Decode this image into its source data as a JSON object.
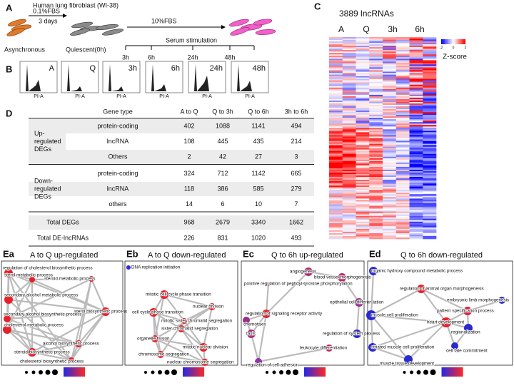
{
  "panel_a": {
    "label": "A",
    "title": "Human lung fibroblast (WI-38)",
    "step1": "0.1%FBS",
    "step1_duration": "3 days",
    "step2": "10%FBS",
    "stimulation": "Serum stimulation",
    "states": [
      "Asynchronous",
      "Quiescent(0h)"
    ],
    "timepoints": [
      "3h",
      "6h",
      "24h",
      "48h"
    ]
  },
  "panel_b": {
    "label": "B",
    "plots": [
      "A",
      "Q",
      "3h",
      "6h",
      "24h",
      "48h"
    ],
    "x_label": "PI-A"
  },
  "panel_c": {
    "label": "C",
    "title": "3889 lncRNAs",
    "columns": [
      "A",
      "Q",
      "3h",
      "6h"
    ],
    "colorbar_ticks": [
      -2,
      0,
      2
    ],
    "colorbar_label": "Z-score"
  },
  "panel_d": {
    "label": "D",
    "table": {
      "header": [
        "Gene type",
        "A to Q",
        "Q to 3h",
        "Q to 6h",
        "3h to 6h"
      ],
      "groups": [
        {
          "name_lines": [
            "Up-",
            "regulated",
            "DEGs"
          ],
          "rows": [
            [
              "protein-coding",
              402,
              1088,
              1141,
              494
            ],
            [
              "lncRNA",
              108,
              445,
              435,
              214
            ],
            [
              "Others",
              2,
              42,
              27,
              3
            ]
          ]
        },
        {
          "name_lines": [
            "Down-",
            "regulated",
            "DEGs"
          ],
          "rows": [
            [
              "protein-coding",
              324,
              712,
              1142,
              665
            ],
            [
              "lncRNA",
              118,
              386,
              585,
              279
            ],
            [
              "others",
              14,
              6,
              10,
              7
            ]
          ]
        }
      ],
      "totals": [
        [
          "Total DEGs",
          968,
          2679,
          3340,
          1662
        ],
        [
          "Total DE-lncRNAs",
          226,
          831,
          1020,
          493
        ]
      ]
    }
  },
  "panel_e": [
    {
      "label": "Ea",
      "title": "A to Q up-regulated",
      "nodes": [
        {
          "label": "regulation of cholesterol biosynthetic process",
          "color": "#e8202a"
        },
        {
          "label": "sterol metabolic process",
          "color": "#e8202a"
        },
        {
          "label": "steroid metabolic process",
          "color": "#e02030"
        },
        {
          "label": "secondary alcohol metabolic process",
          "color": "#e8202a"
        },
        {
          "label": "sterol biosynthetic process",
          "color": "#e8202a"
        },
        {
          "label": "secondary alcohol biosynthetic process",
          "color": "#e8202a"
        },
        {
          "label": "cholesterol metabolic process",
          "color": "#e8202a"
        },
        {
          "label": "alcohol biosynthetic process",
          "color": "#e02030"
        },
        {
          "label": "steroid biosynthetic process",
          "color": "#e8202a"
        },
        {
          "label": "cholesterol biosynthetic process",
          "color": "#e8202a"
        }
      ]
    },
    {
      "label": "Eb",
      "title": "A to Q down-regulated",
      "nodes": [
        {
          "label": "DNA replication initiation",
          "color": "#2b2bd6"
        },
        {
          "label": "mitotic cell cycle phase transition",
          "color": "#e8202a"
        },
        {
          "label": "nuclear division",
          "color": "#e8202a"
        },
        {
          "label": "cell cycle phase transition",
          "color": "#e8202a"
        },
        {
          "label": "mitotic sister chromatid segregation",
          "color": "#e8202a"
        },
        {
          "label": "sister chromatid segregation",
          "color": "#e8202a"
        },
        {
          "label": "organelle fission",
          "color": "#e8202a"
        },
        {
          "label": "mitotic nuclear division",
          "color": "#e8202a"
        },
        {
          "label": "chromosome segregation",
          "color": "#e8202a"
        },
        {
          "label": "nuclear chromosome segregation",
          "color": "#e8202a"
        }
      ]
    },
    {
      "label": "Ec",
      "title": "Q to 6h up-regulated",
      "nodes": [
        {
          "label": "angiogenesis",
          "color": "#b0307a"
        },
        {
          "label": "blood vessel morphogenesis",
          "color": "#c0286a"
        },
        {
          "label": "positive regulation of peptidyl-tyrosine phosphorylation",
          "color": "#e8202a"
        },
        {
          "label": "epithelial cell differentiation",
          "color": "#9a3090"
        },
        {
          "label": "regulation of signaling receptor activity",
          "color": "#e02830"
        },
        {
          "label": "chemotaxis",
          "color": "#9b2e8c"
        },
        {
          "label": "taxis",
          "color": "#b0307e"
        },
        {
          "label": "regulation of system process",
          "color": "#2a2ad0"
        },
        {
          "label": "leukocyte differentiation",
          "color": "#d0205a"
        },
        {
          "label": "regulation of cell adhesion",
          "color": "#8a3aa0"
        }
      ]
    },
    {
      "label": "Ed",
      "title": "Q to 6h down-regulated",
      "nodes": [
        {
          "label": "organic hydroxy compound metabolic process",
          "color": "#2a2ad0"
        },
        {
          "label": "regulation of animal organ morphogenesis",
          "color": "#e8202a"
        },
        {
          "label": "embryonic limb morphogenesis",
          "color": "#2a2ad0"
        },
        {
          "label": "pattern specification process",
          "color": "#e0203a"
        },
        {
          "label": "muscle cell proliferation",
          "color": "#2a2ad0"
        },
        {
          "label": "heart development",
          "color": "#e8202a"
        },
        {
          "label": "regionalization",
          "color": "#2a2ad0"
        },
        {
          "label": "striated muscle cell proliferation",
          "color": "#2a2ad0"
        },
        {
          "label": "cell fate commitment",
          "color": "#2a2ad0"
        },
        {
          "label": "muscle tissue development",
          "color": "#2a2ad0"
        }
      ]
    }
  ]
}
